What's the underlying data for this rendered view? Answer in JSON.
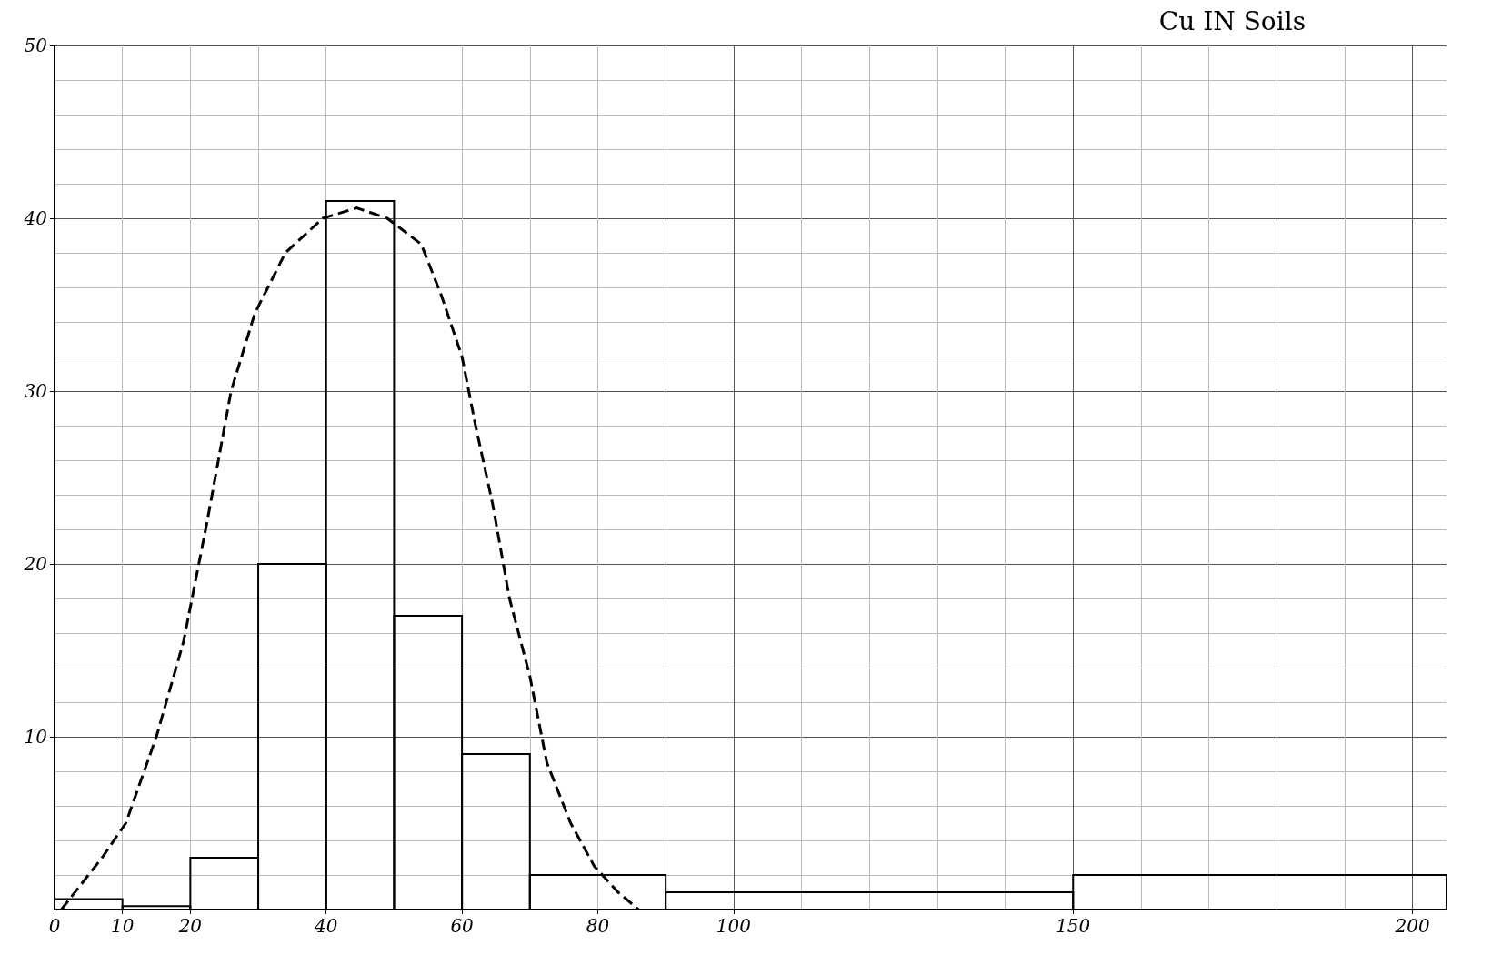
{
  "chart_data": {
    "type": "histogram",
    "title": "Cu IN Soils",
    "bins": [
      0,
      10,
      20,
      30,
      40,
      50,
      60,
      70,
      90,
      150,
      205
    ],
    "values": [
      0.6,
      0.2,
      3,
      20,
      41,
      17,
      9,
      2,
      1,
      2
    ],
    "color": "#000000",
    "series": [
      {
        "type": "line",
        "color": "#000000",
        "line_style": "dashed",
        "x": [
          1,
          7,
          10.5,
          15,
          19,
          22.5,
          26,
          29.5,
          34,
          39.5,
          44.5,
          49,
          54,
          57,
          60,
          62,
          64.5,
          67,
          70,
          72.5,
          76,
          79.5,
          83,
          86
        ],
        "values": [
          0,
          3,
          5,
          10,
          15.5,
          22.5,
          30,
          34.5,
          38,
          40,
          40.6,
          40,
          38.5,
          35.5,
          32,
          28,
          23.5,
          18,
          13.5,
          8.5,
          5,
          2.5,
          1,
          0
        ]
      }
    ],
    "marker": "none",
    "xlim": [
      0,
      205
    ],
    "xticks": [
      0,
      10,
      20,
      40,
      60,
      80,
      100,
      150,
      200
    ],
    "ylim": [
      0,
      50
    ],
    "yticks": [
      10,
      20,
      30,
      40,
      50
    ],
    "grid": true
  }
}
